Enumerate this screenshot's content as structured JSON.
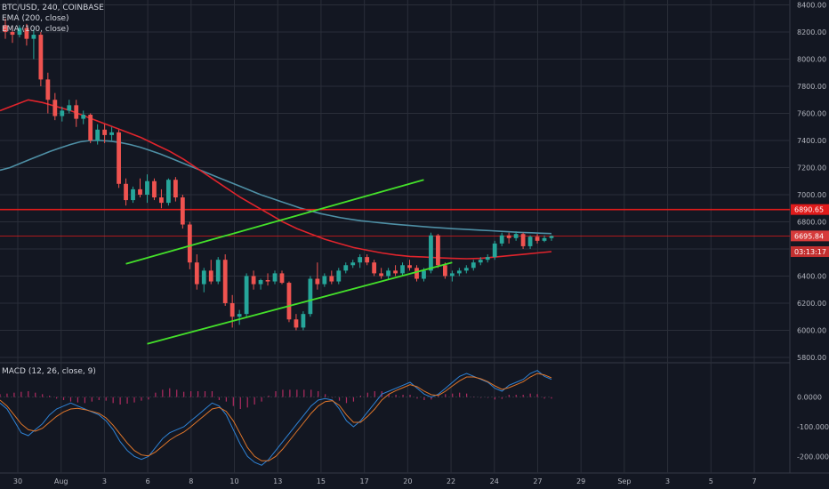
{
  "header": {
    "symbol_line": "BTC/USD, 240, COINBASE",
    "ema200_line": "EMA (200, close)",
    "ema100_line": "EMA (100, close)",
    "macd_line": "MACD (12, 26, close, 9)"
  },
  "colors": {
    "background": "#131722",
    "grid": "#2a2e39",
    "up_candle": "#26a69a",
    "down_candle": "#ef5350",
    "ema200": "#4e8fa5",
    "ema100": "#e0242c",
    "channel": "#44e02a",
    "hline": "#e01b1b",
    "macd_line": "#2f83d6",
    "signal_line": "#e0762a",
    "hist_pos": "#b02b61",
    "hist_neg": "#b02b61"
  },
  "chart_data": [
    {
      "type": "candlestick",
      "title": "BTC/USD, 240, COINBASE",
      "price_axis": {
        "ticks": [
          "8400.00",
          "8200.00",
          "8000.00",
          "7800.00",
          "7600.00",
          "7400.00",
          "7200.00",
          "7000.00",
          "6800.00",
          "6600.00",
          "6400.00",
          "6200.00",
          "6000.00",
          "5800.00"
        ],
        "range": [
          5780,
          8410
        ]
      },
      "time_axis": {
        "ticks": [
          "30",
          "Aug",
          "3",
          "6",
          "8",
          "10",
          "13",
          "15",
          "17",
          "20",
          "22",
          "24",
          "27",
          "29",
          "Sep",
          "3",
          "5",
          "7"
        ]
      },
      "candles": [
        {
          "o": 8250,
          "h": 8300,
          "l": 8150,
          "c": 8200
        },
        {
          "o": 8200,
          "h": 8240,
          "l": 8120,
          "c": 8180
        },
        {
          "o": 8180,
          "h": 8250,
          "l": 8160,
          "c": 8230
        },
        {
          "o": 8230,
          "h": 8260,
          "l": 8100,
          "c": 8150
        },
        {
          "o": 8150,
          "h": 8220,
          "l": 8000,
          "c": 8180
        },
        {
          "o": 8180,
          "h": 8200,
          "l": 7800,
          "c": 7850
        },
        {
          "o": 7850,
          "h": 7900,
          "l": 7600,
          "c": 7700
        },
        {
          "o": 7700,
          "h": 7750,
          "l": 7550,
          "c": 7580
        },
        {
          "o": 7580,
          "h": 7650,
          "l": 7540,
          "c": 7620
        },
        {
          "o": 7620,
          "h": 7700,
          "l": 7600,
          "c": 7660
        },
        {
          "o": 7660,
          "h": 7700,
          "l": 7500,
          "c": 7560
        },
        {
          "o": 7560,
          "h": 7620,
          "l": 7520,
          "c": 7590
        },
        {
          "o": 7590,
          "h": 7600,
          "l": 7380,
          "c": 7400
        },
        {
          "o": 7400,
          "h": 7520,
          "l": 7370,
          "c": 7480
        },
        {
          "o": 7480,
          "h": 7520,
          "l": 7380,
          "c": 7440
        },
        {
          "o": 7440,
          "h": 7500,
          "l": 7400,
          "c": 7460
        },
        {
          "o": 7460,
          "h": 7480,
          "l": 7050,
          "c": 7080
        },
        {
          "o": 7080,
          "h": 7120,
          "l": 6920,
          "c": 6960
        },
        {
          "o": 6960,
          "h": 7060,
          "l": 6940,
          "c": 7040
        },
        {
          "o": 7040,
          "h": 7120,
          "l": 6980,
          "c": 7000
        },
        {
          "o": 7000,
          "h": 7150,
          "l": 6940,
          "c": 7100
        },
        {
          "o": 7100,
          "h": 7120,
          "l": 6960,
          "c": 6980
        },
        {
          "o": 6980,
          "h": 7040,
          "l": 6900,
          "c": 6940
        },
        {
          "o": 6940,
          "h": 7120,
          "l": 6920,
          "c": 7110
        },
        {
          "o": 7110,
          "h": 7130,
          "l": 6950,
          "c": 6980
        },
        {
          "o": 6980,
          "h": 7000,
          "l": 6750,
          "c": 6780
        },
        {
          "o": 6780,
          "h": 6800,
          "l": 6450,
          "c": 6500
        },
        {
          "o": 6500,
          "h": 6560,
          "l": 6300,
          "c": 6340
        },
        {
          "o": 6340,
          "h": 6460,
          "l": 6280,
          "c": 6440
        },
        {
          "o": 6440,
          "h": 6520,
          "l": 6340,
          "c": 6360
        },
        {
          "o": 6360,
          "h": 6540,
          "l": 6340,
          "c": 6520
        },
        {
          "o": 6520,
          "h": 6560,
          "l": 6180,
          "c": 6200
        },
        {
          "o": 6200,
          "h": 6260,
          "l": 6020,
          "c": 6100
        },
        {
          "o": 6100,
          "h": 6150,
          "l": 6040,
          "c": 6120
        },
        {
          "o": 6120,
          "h": 6420,
          "l": 6100,
          "c": 6400
        },
        {
          "o": 6400,
          "h": 6440,
          "l": 6300,
          "c": 6340
        },
        {
          "o": 6340,
          "h": 6380,
          "l": 6300,
          "c": 6370
        },
        {
          "o": 6370,
          "h": 6420,
          "l": 6330,
          "c": 6360
        },
        {
          "o": 6360,
          "h": 6440,
          "l": 6340,
          "c": 6420
        },
        {
          "o": 6420,
          "h": 6440,
          "l": 6340,
          "c": 6350
        },
        {
          "o": 6350,
          "h": 6360,
          "l": 6060,
          "c": 6080
        },
        {
          "o": 6080,
          "h": 6120,
          "l": 6000,
          "c": 6020
        },
        {
          "o": 6020,
          "h": 6140,
          "l": 6000,
          "c": 6120
        },
        {
          "o": 6120,
          "h": 6400,
          "l": 6100,
          "c": 6380
        },
        {
          "o": 6380,
          "h": 6500,
          "l": 6300,
          "c": 6340
        },
        {
          "o": 6340,
          "h": 6420,
          "l": 6320,
          "c": 6400
        },
        {
          "o": 6400,
          "h": 6440,
          "l": 6340,
          "c": 6360
        },
        {
          "o": 6360,
          "h": 6460,
          "l": 6340,
          "c": 6440
        },
        {
          "o": 6440,
          "h": 6500,
          "l": 6420,
          "c": 6480
        },
        {
          "o": 6480,
          "h": 6520,
          "l": 6460,
          "c": 6500
        },
        {
          "o": 6500,
          "h": 6560,
          "l": 6460,
          "c": 6540
        },
        {
          "o": 6540,
          "h": 6560,
          "l": 6480,
          "c": 6500
        },
        {
          "o": 6500,
          "h": 6520,
          "l": 6400,
          "c": 6420
        },
        {
          "o": 6420,
          "h": 6460,
          "l": 6380,
          "c": 6400
        },
        {
          "o": 6400,
          "h": 6460,
          "l": 6380,
          "c": 6440
        },
        {
          "o": 6440,
          "h": 6480,
          "l": 6400,
          "c": 6420
        },
        {
          "o": 6420,
          "h": 6500,
          "l": 6400,
          "c": 6480
        },
        {
          "o": 6480,
          "h": 6520,
          "l": 6440,
          "c": 6460
        },
        {
          "o": 6460,
          "h": 6480,
          "l": 6360,
          "c": 6380
        },
        {
          "o": 6380,
          "h": 6460,
          "l": 6360,
          "c": 6440
        },
        {
          "o": 6440,
          "h": 6720,
          "l": 6420,
          "c": 6700
        },
        {
          "o": 6700,
          "h": 6710,
          "l": 6460,
          "c": 6480
        },
        {
          "o": 6480,
          "h": 6500,
          "l": 6380,
          "c": 6400
        },
        {
          "o": 6400,
          "h": 6440,
          "l": 6360,
          "c": 6420
        },
        {
          "o": 6420,
          "h": 6460,
          "l": 6400,
          "c": 6440
        },
        {
          "o": 6440,
          "h": 6480,
          "l": 6420,
          "c": 6460
        },
        {
          "o": 6460,
          "h": 6520,
          "l": 6440,
          "c": 6500
        },
        {
          "o": 6500,
          "h": 6540,
          "l": 6480,
          "c": 6520
        },
        {
          "o": 6520,
          "h": 6560,
          "l": 6500,
          "c": 6540
        },
        {
          "o": 6540,
          "h": 6660,
          "l": 6520,
          "c": 6640
        },
        {
          "o": 6640,
          "h": 6720,
          "l": 6620,
          "c": 6700
        },
        {
          "o": 6700,
          "h": 6720,
          "l": 6640,
          "c": 6680
        },
        {
          "o": 6680,
          "h": 6730,
          "l": 6660,
          "c": 6710
        },
        {
          "o": 6710,
          "h": 6720,
          "l": 6600,
          "c": 6620
        },
        {
          "o": 6620,
          "h": 6700,
          "l": 6600,
          "c": 6690
        },
        {
          "o": 6690,
          "h": 6710,
          "l": 6640,
          "c": 6660
        },
        {
          "o": 6660,
          "h": 6700,
          "l": 6650,
          "c": 6680
        },
        {
          "o": 6680,
          "h": 6700,
          "l": 6660,
          "c": 6695
        }
      ],
      "ema200": [
        7180,
        7200,
        7230,
        7260,
        7290,
        7320,
        7345,
        7370,
        7390,
        7400,
        7400,
        7395,
        7385,
        7370,
        7350,
        7325,
        7300,
        7270,
        7240,
        7210,
        7180,
        7150,
        7120,
        7090,
        7060,
        7030,
        7000,
        6975,
        6950,
        6925,
        6900,
        6880,
        6860,
        6845,
        6830,
        6818,
        6808,
        6800,
        6792,
        6785,
        6778,
        6772,
        6766,
        6760,
        6755,
        6750,
        6746,
        6742,
        6738,
        6734,
        6730,
        6726,
        6722,
        6719,
        6716,
        6713
      ],
      "ema100": [
        7620,
        7660,
        7700,
        7680,
        7650,
        7620,
        7580,
        7540,
        7500,
        7460,
        7420,
        7370,
        7320,
        7260,
        7190,
        7120,
        7050,
        6980,
        6920,
        6860,
        6800,
        6750,
        6710,
        6670,
        6640,
        6610,
        6590,
        6570,
        6555,
        6545,
        6540,
        6535,
        6530,
        6528,
        6530,
        6540,
        6550,
        6560,
        6570,
        6580
      ],
      "horizontal_lines": [
        {
          "price": 6890.65,
          "label": "6890.65"
        },
        {
          "price": 6695.84,
          "label": "6695.84"
        }
      ],
      "price_tags": [
        {
          "price": 6890.65,
          "label": "6890.65"
        },
        {
          "price": 6695.84,
          "label": "6695.84"
        },
        {
          "price": 6580,
          "label": "03:13:17"
        }
      ],
      "channel_upper": [
        [
          17,
          6490
        ],
        [
          45,
          6870
        ],
        [
          59,
          7110
        ]
      ],
      "channel_lower": [
        [
          20,
          5900
        ],
        [
          52,
          6300
        ],
        [
          63,
          6500
        ]
      ]
    },
    {
      "type": "macd",
      "title": "MACD (12, 26, close, 9)",
      "ticks": [
        "0.0000",
        "-100.0000",
        "-200.0000"
      ],
      "range": [
        -250,
        110
      ],
      "macd": [
        -20,
        -40,
        -80,
        -120,
        -130,
        -110,
        -90,
        -60,
        -40,
        -30,
        -20,
        -30,
        -40,
        -50,
        -60,
        -80,
        -110,
        -150,
        -180,
        -200,
        -210,
        -200,
        -170,
        -140,
        -120,
        -110,
        -100,
        -80,
        -60,
        -40,
        -20,
        -30,
        -60,
        -110,
        -160,
        -200,
        -220,
        -230,
        -210,
        -180,
        -150,
        -120,
        -90,
        -60,
        -30,
        -10,
        -5,
        -10,
        -40,
        -80,
        -100,
        -80,
        -50,
        -20,
        10,
        20,
        30,
        40,
        50,
        30,
        10,
        0,
        10,
        30,
        50,
        70,
        80,
        70,
        60,
        50,
        30,
        20,
        40,
        50,
        60,
        80,
        90,
        70,
        60
      ],
      "signal": [
        -10,
        -30,
        -60,
        -90,
        -110,
        -115,
        -105,
        -85,
        -65,
        -50,
        -40,
        -38,
        -42,
        -48,
        -55,
        -70,
        -95,
        -125,
        -155,
        -180,
        -195,
        -198,
        -185,
        -165,
        -145,
        -130,
        -118,
        -100,
        -80,
        -60,
        -40,
        -35,
        -48,
        -80,
        -125,
        -170,
        -200,
        -215,
        -215,
        -200,
        -175,
        -145,
        -115,
        -85,
        -55,
        -30,
        -15,
        -12,
        -28,
        -60,
        -85,
        -85,
        -65,
        -40,
        -10,
        10,
        22,
        32,
        42,
        35,
        20,
        8,
        6,
        20,
        38,
        55,
        68,
        68,
        62,
        52,
        38,
        26,
        32,
        42,
        52,
        68,
        80,
        75,
        65
      ],
      "hist": [
        10,
        12,
        15,
        18,
        20,
        15,
        10,
        5,
        -5,
        -10,
        -15,
        -18,
        -20,
        -15,
        -10,
        -12,
        -20,
        -25,
        -22,
        -18,
        -12,
        -8,
        15,
        25,
        30,
        25,
        18,
        20,
        20,
        20,
        20,
        -10,
        -15,
        -30,
        -40,
        -35,
        -25,
        -15,
        5,
        20,
        25,
        25,
        25,
        25,
        25,
        20,
        10,
        -2,
        -12,
        -20,
        -15,
        5,
        15,
        20,
        20,
        10,
        8,
        8,
        8,
        -5,
        -10,
        -8,
        4,
        10,
        12,
        15,
        12,
        2,
        -2,
        -2,
        -8,
        -6,
        8,
        8,
        8,
        12,
        10,
        -5,
        -5
      ]
    }
  ]
}
